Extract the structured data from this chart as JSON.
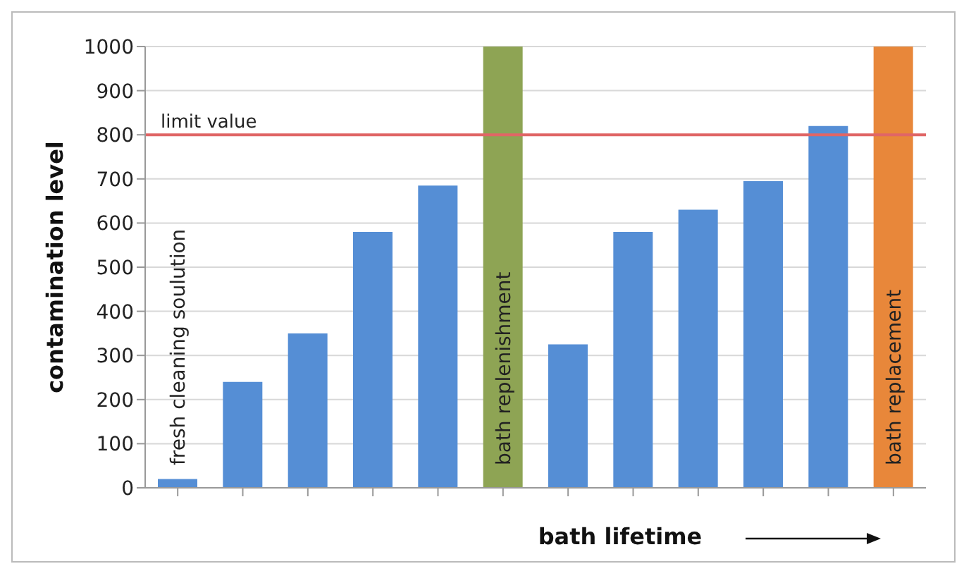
{
  "chart_data": {
    "type": "bar",
    "ylabel": "contamination level",
    "xlabel": "bath lifetime",
    "categories": [
      null,
      null,
      null,
      null,
      null,
      null,
      null,
      null,
      null,
      null,
      null,
      null
    ],
    "values": [
      20,
      240,
      350,
      580,
      685,
      1000,
      325,
      580,
      630,
      695,
      820,
      1000
    ],
    "colors": [
      "#558ed5",
      "#558ed5",
      "#558ed5",
      "#558ed5",
      "#558ed5",
      "#8ea454",
      "#558ed5",
      "#558ed5",
      "#558ed5",
      "#558ed5",
      "#558ed5",
      "#e8873a"
    ],
    "value_labels": [
      "fresh cleaning soulution",
      null,
      null,
      null,
      null,
      "bath replenishment",
      null,
      null,
      null,
      null,
      null,
      "bath replacement"
    ],
    "ylim": [
      0,
      1000
    ],
    "yticks": [
      0,
      100,
      200,
      300,
      400,
      500,
      600,
      700,
      800,
      900,
      1000
    ],
    "grid": "y",
    "ref_lines": [
      {
        "axis": "y",
        "value": 800,
        "label": "limit value",
        "color": "#e06666"
      }
    ]
  }
}
